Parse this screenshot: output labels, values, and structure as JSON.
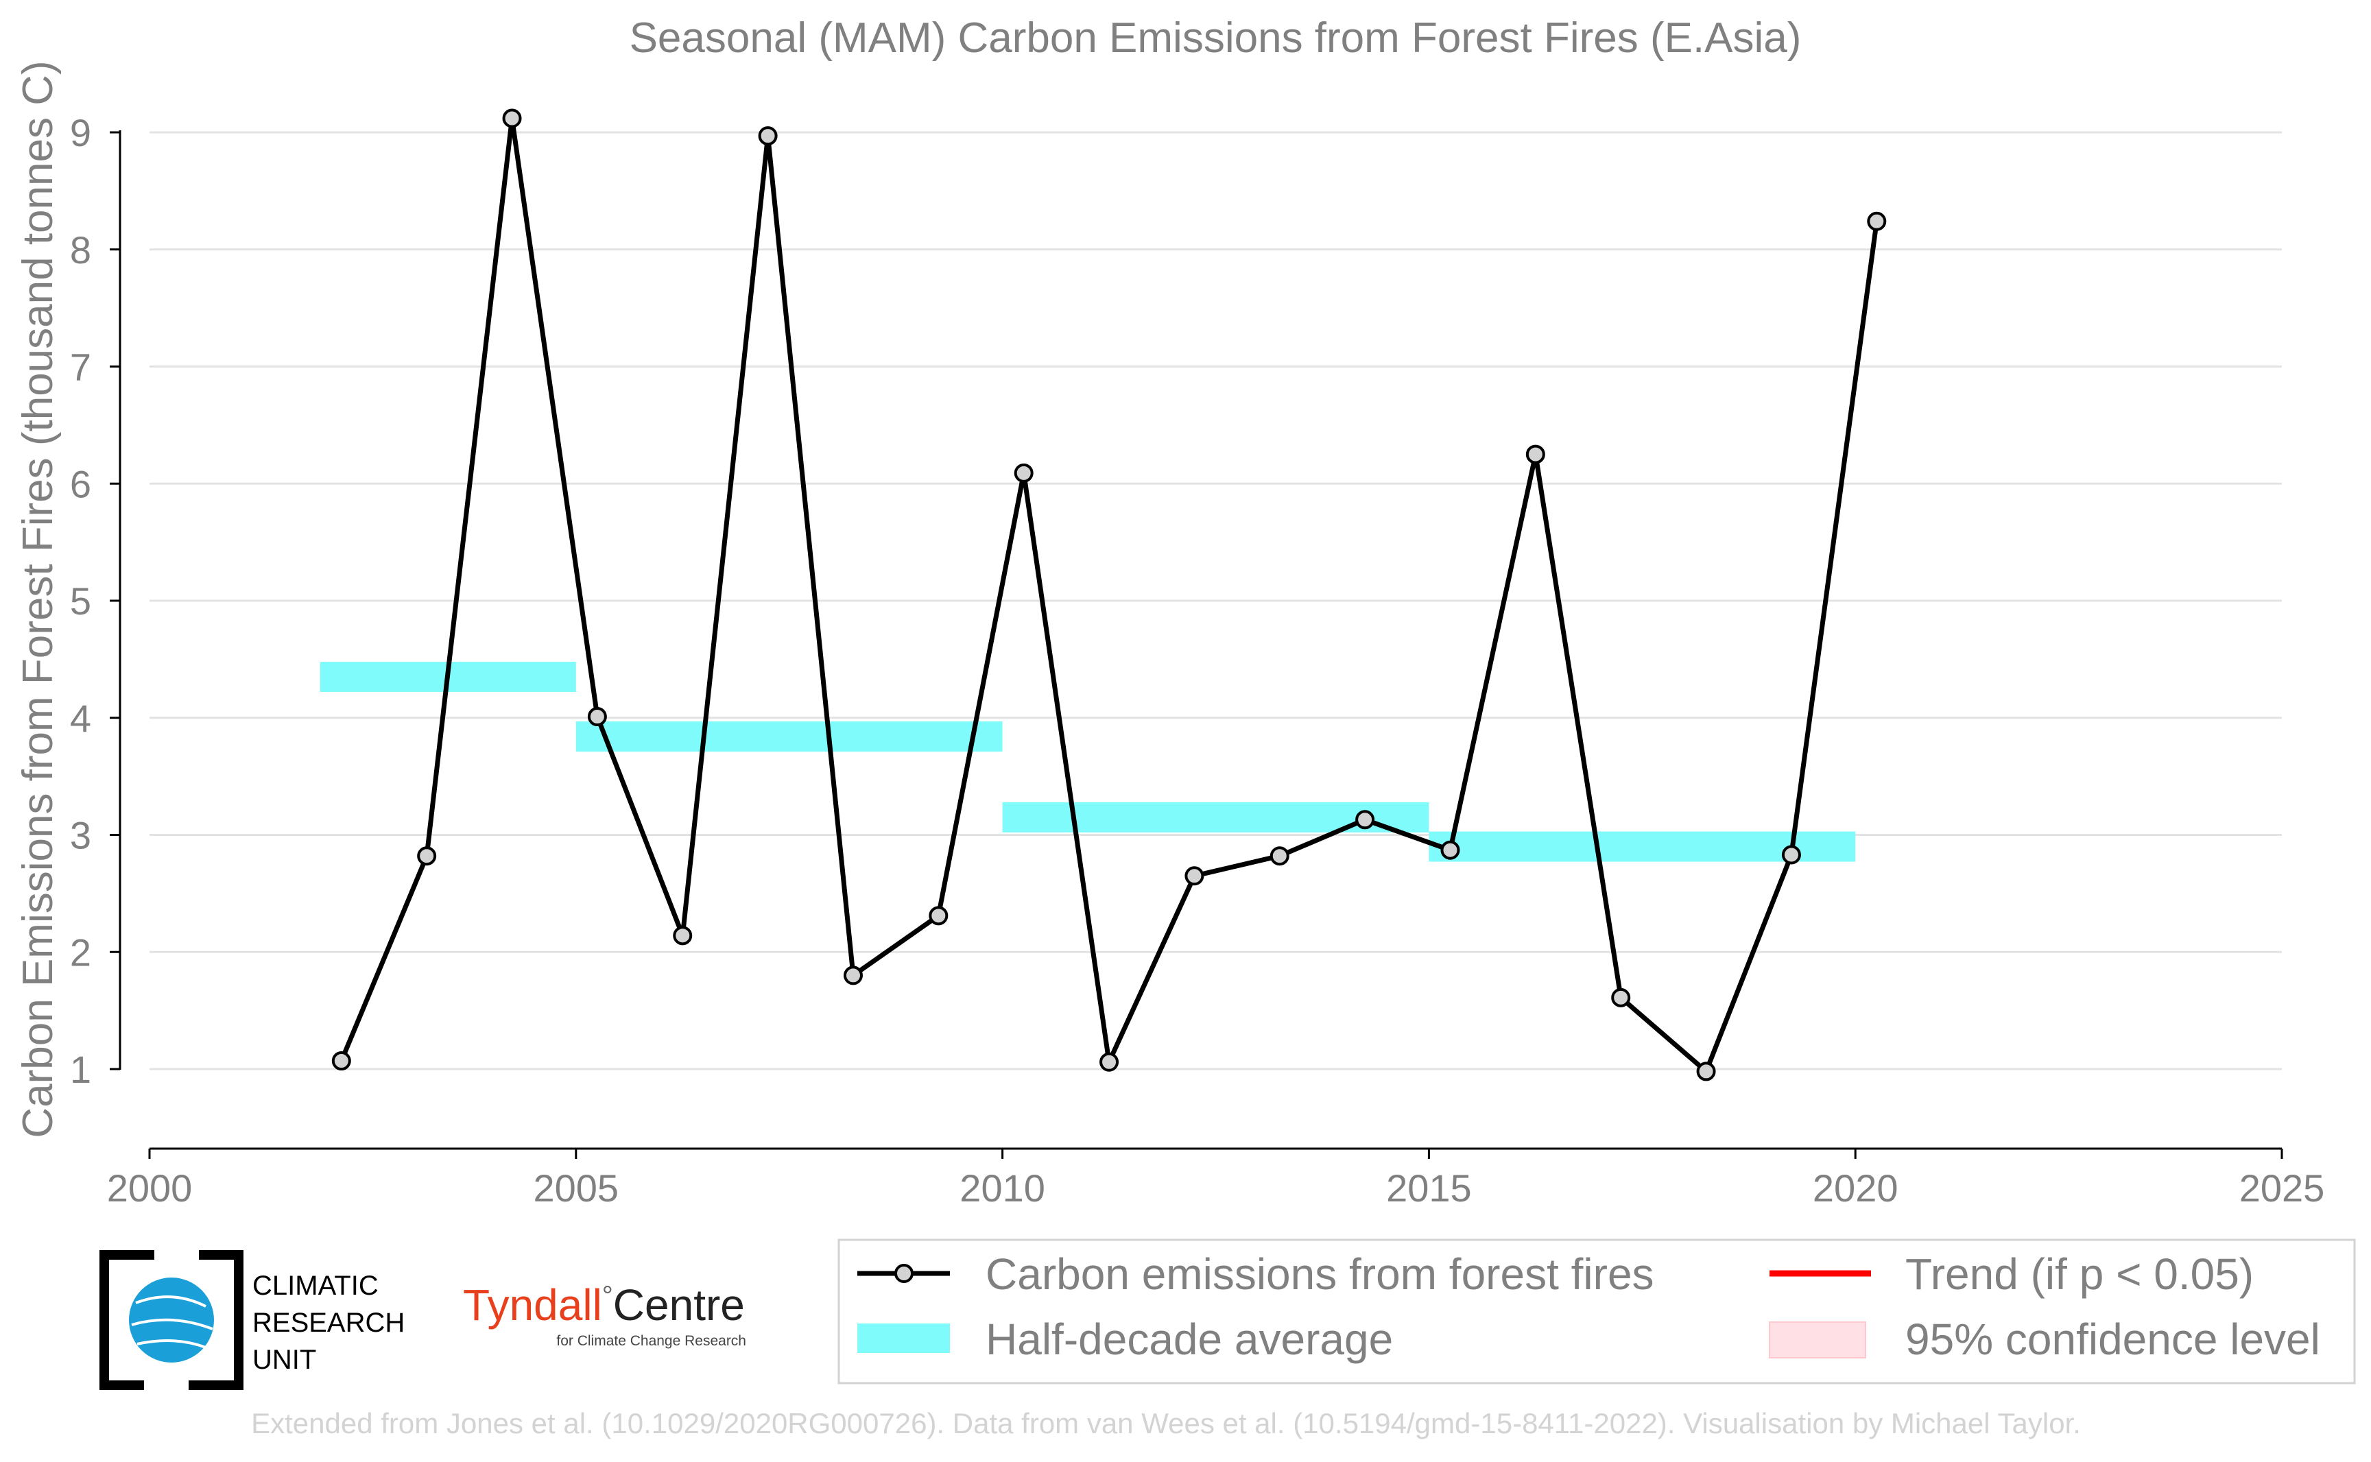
{
  "chart_data": {
    "type": "line",
    "title": "Seasonal (MAM) Carbon Emissions from Forest Fires (E.Asia)",
    "xlabel": "",
    "ylabel": "Carbon Emissions from Forest Fires (thousand tonnes C)",
    "xlim": [
      2000,
      2025
    ],
    "ylim": [
      0.33,
      9.3
    ],
    "xticks": [
      2000,
      2005,
      2010,
      2015,
      2020,
      2025
    ],
    "yticks": [
      1,
      2,
      3,
      4,
      5,
      6,
      7,
      8,
      9
    ],
    "grid": "horizontal",
    "legend_position": "bottom",
    "series": [
      {
        "name": "Carbon emissions from forest fires",
        "color": "#000000",
        "x": [
          2002.25,
          2003.25,
          2004.25,
          2005.25,
          2006.25,
          2007.25,
          2008.25,
          2009.25,
          2010.25,
          2011.25,
          2012.25,
          2013.25,
          2014.25,
          2015.25,
          2016.25,
          2017.25,
          2018.25,
          2019.25,
          2020.25
        ],
        "y": [
          1.07,
          2.82,
          9.12,
          4.01,
          2.14,
          8.97,
          1.8,
          2.31,
          6.09,
          1.06,
          2.65,
          2.82,
          3.13,
          2.87,
          6.25,
          1.61,
          0.98,
          2.83,
          8.24
        ]
      },
      {
        "name": "Half-decade average",
        "color": "#7ffbfb",
        "segments": [
          {
            "x": [
              2002,
              2005
            ],
            "y": 4.35
          },
          {
            "x": [
              2005,
              2010
            ],
            "y": 3.84
          },
          {
            "x": [
              2010,
              2015
            ],
            "y": 3.15
          },
          {
            "x": [
              2015,
              2020
            ],
            "y": 2.9
          }
        ]
      }
    ],
    "legend": [
      {
        "label": "Carbon emissions from forest fires",
        "kind": "line-marker",
        "color": "#000000"
      },
      {
        "label": "Half-decade average",
        "kind": "band",
        "color": "#7ffbfb"
      },
      {
        "label": "Trend (if p < 0.05)",
        "kind": "line",
        "color": "#ff0000"
      },
      {
        "label": "95% confidence level",
        "kind": "patch",
        "color": "#ffe0e4"
      }
    ]
  },
  "logos": {
    "cru_lines": [
      "CLIMATIC",
      "RESEARCH",
      "UNIT"
    ],
    "tyndall_left": "Tyndall",
    "tyndall_right": "Centre",
    "tyndall_sub": "for Climate Change Research"
  },
  "credit": "Extended from Jones et al. (10.1029/2020RG000726). Data from van Wees et al. (10.5194/gmd-15-8411-2022). Visualisation by Michael Taylor."
}
